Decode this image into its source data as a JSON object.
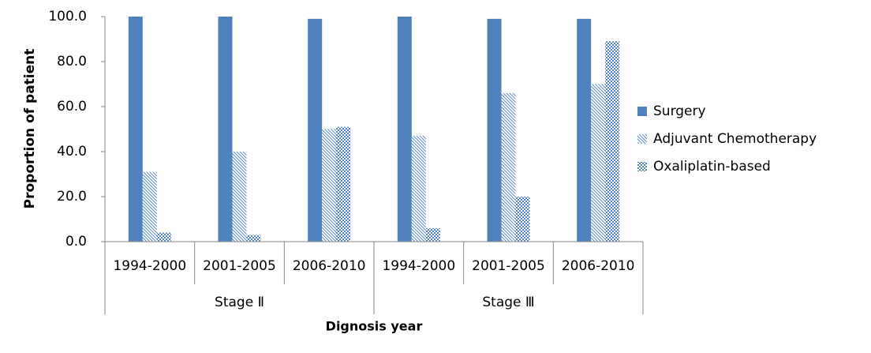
{
  "chart_data": {
    "type": "bar",
    "x_label": "Dignosis year",
    "y_label": "Proportion of patient",
    "categories": [
      "1994-2000",
      "2001-2005",
      "2006-2010",
      "1994-2000",
      "2001-2005",
      "2006-2010"
    ],
    "groups": [
      "Stage Ⅱ",
      "Stage Ⅲ"
    ],
    "series": [
      {
        "name": "Surgery",
        "color": "#4f81bd",
        "fill": "solid",
        "values": [
          100,
          100,
          99,
          100,
          99,
          99
        ]
      },
      {
        "name": "Adjuvant Chemotherapy",
        "color": "#4f81bd",
        "fill": "hatch",
        "values": [
          31,
          40,
          50,
          47,
          66,
          70
        ]
      },
      {
        "name": "Oxaliplatin-based",
        "color": "#4f81bd",
        "fill": "checker",
        "values": [
          4,
          3,
          51,
          6,
          20,
          89
        ]
      }
    ],
    "ylim": [
      0,
      100
    ],
    "yticks": [
      {
        "value": 0,
        "label": "0.0"
      },
      {
        "value": 20,
        "label": "20.0"
      },
      {
        "value": 40,
        "label": "40.0"
      },
      {
        "value": 60,
        "label": "60.0"
      },
      {
        "value": 80,
        "label": "80.0"
      },
      {
        "value": 100,
        "label": "100.0"
      }
    ],
    "grid": false,
    "legend": "right"
  }
}
